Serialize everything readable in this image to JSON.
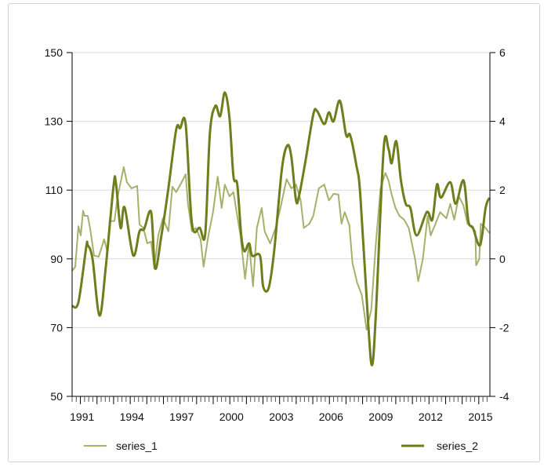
{
  "chart_data": {
    "type": "line",
    "title": "",
    "xlabel": "",
    "ylabel_left": "",
    "ylabel_right": "",
    "xlim": [
      1990.5,
      2015.67
    ],
    "ylim_left": [
      50,
      150
    ],
    "ylim_right": [
      -4,
      6
    ],
    "x_ticks": [
      "1991",
      "1994",
      "1997",
      "2000",
      "2003",
      "2006",
      "2009",
      "2012",
      "2015"
    ],
    "y_ticks_left": [
      "50",
      "70",
      "90",
      "110",
      "130",
      "150"
    ],
    "y_ticks_right": [
      "-4",
      "-2",
      "0",
      "2",
      "4",
      "6"
    ],
    "grid": true,
    "legend_position": "bottom",
    "colors": {
      "series_1": "#a7b06a",
      "series_2": "#6f7d1c",
      "grid": "#d9d9d9",
      "axis": "#000000"
    },
    "series": [
      {
        "name": "series_1",
        "axis": "left",
        "points": [
          [
            1990.5,
            86.5
          ],
          [
            1990.69,
            87.7
          ],
          [
            1990.88,
            99.5
          ],
          [
            1991.02,
            96.8
          ],
          [
            1991.16,
            104
          ],
          [
            1991.25,
            102.5
          ],
          [
            1991.44,
            102.5
          ],
          [
            1991.58,
            99
          ],
          [
            1991.82,
            91
          ],
          [
            1992.1,
            90.6
          ],
          [
            1992.43,
            95.7
          ],
          [
            1992.62,
            92
          ],
          [
            1992.76,
            101
          ],
          [
            1993.05,
            101
          ],
          [
            1993.24,
            108
          ],
          [
            1993.61,
            116.7
          ],
          [
            1993.8,
            112.3
          ],
          [
            1994.08,
            110.5
          ],
          [
            1994.42,
            111.2
          ],
          [
            1994.56,
            100
          ],
          [
            1994.79,
            99
          ],
          [
            1995.03,
            94.5
          ],
          [
            1995.26,
            95
          ],
          [
            1995.45,
            87.2
          ],
          [
            1995.69,
            96.8
          ],
          [
            1995.97,
            101.8
          ],
          [
            1996.3,
            98
          ],
          [
            1996.54,
            111
          ],
          [
            1996.77,
            109.4
          ],
          [
            1997.1,
            112.3
          ],
          [
            1997.34,
            114.6
          ],
          [
            1997.48,
            106
          ],
          [
            1997.72,
            98
          ],
          [
            1997.95,
            99
          ],
          [
            1998.24,
            95.7
          ],
          [
            1998.42,
            87.7
          ],
          [
            1998.71,
            96.8
          ],
          [
            1998.99,
            103.6
          ],
          [
            1999.27,
            113.9
          ],
          [
            1999.51,
            104.8
          ],
          [
            1999.7,
            111.6
          ],
          [
            1999.98,
            108.2
          ],
          [
            2000.22,
            109.4
          ],
          [
            2000.41,
            103.6
          ],
          [
            2000.64,
            96.8
          ],
          [
            2000.92,
            84.2
          ],
          [
            2001.16,
            94.5
          ],
          [
            2001.4,
            82
          ],
          [
            2001.63,
            99
          ],
          [
            2001.92,
            104.8
          ],
          [
            2002.1,
            98
          ],
          [
            2002.43,
            94.5
          ],
          [
            2002.76,
            99
          ],
          [
            2003.05,
            104.8
          ],
          [
            2003.42,
            113.2
          ],
          [
            2003.71,
            110.5
          ],
          [
            2003.99,
            111.6
          ],
          [
            2004.27,
            107
          ],
          [
            2004.46,
            99
          ],
          [
            2004.79,
            100.2
          ],
          [
            2005.03,
            102.5
          ],
          [
            2005.36,
            110.5
          ],
          [
            2005.69,
            111.6
          ],
          [
            2005.97,
            107
          ],
          [
            2006.25,
            108.9
          ],
          [
            2006.54,
            108.7
          ],
          [
            2006.73,
            100.2
          ],
          [
            2006.92,
            103.6
          ],
          [
            2007.2,
            99.8
          ],
          [
            2007.39,
            88.8
          ],
          [
            2007.67,
            83.1
          ],
          [
            2007.95,
            79.5
          ],
          [
            2008.24,
            69.4
          ],
          [
            2008.52,
            75.1
          ],
          [
            2008.8,
            94.5
          ],
          [
            2009.08,
            110.5
          ],
          [
            2009.37,
            115
          ],
          [
            2009.56,
            112.8
          ],
          [
            2009.75,
            108.7
          ],
          [
            2009.98,
            104.8
          ],
          [
            2010.22,
            102.5
          ],
          [
            2010.5,
            101.4
          ],
          [
            2010.78,
            99
          ],
          [
            2011.16,
            90
          ],
          [
            2011.35,
            83.5
          ],
          [
            2011.63,
            90
          ],
          [
            2011.92,
            102.5
          ],
          [
            2012.1,
            96.8
          ],
          [
            2012.39,
            100.2
          ],
          [
            2012.67,
            103.6
          ],
          [
            2013.05,
            101.8
          ],
          [
            2013.28,
            106
          ],
          [
            2013.52,
            101.4
          ],
          [
            2013.8,
            108.2
          ],
          [
            2014.08,
            105.5
          ],
          [
            2014.32,
            100.2
          ],
          [
            2014.6,
            99
          ],
          [
            2014.79,
            98
          ],
          [
            2014.84,
            88.1
          ],
          [
            2015.03,
            90
          ],
          [
            2015.12,
            100.2
          ],
          [
            2015.41,
            99
          ],
          [
            2015.64,
            97.5
          ]
        ]
      },
      {
        "name": "series_2",
        "axis": "right",
        "points": [
          [
            1990.5,
            -1.37
          ],
          [
            1990.88,
            -1.26
          ],
          [
            1991.35,
            0.34
          ],
          [
            1991.44,
            0.4
          ],
          [
            1991.73,
            0
          ],
          [
            1992.15,
            -1.65
          ],
          [
            1992.53,
            -0.23
          ],
          [
            1993.0,
            2.14
          ],
          [
            1993.14,
            2.2
          ],
          [
            1993.42,
            0.9
          ],
          [
            1993.66,
            1.5
          ],
          [
            1994.18,
            0.1
          ],
          [
            1994.56,
            0.8
          ],
          [
            1994.84,
            0.87
          ],
          [
            1995.26,
            1.36
          ],
          [
            1995.5,
            -0.28
          ],
          [
            1995.88,
            0.68
          ],
          [
            1996.3,
            2.05
          ],
          [
            1996.77,
            3.76
          ],
          [
            1997.01,
            3.8
          ],
          [
            1997.34,
            3.92
          ],
          [
            1997.72,
            1.02
          ],
          [
            1998.19,
            0.9
          ],
          [
            1998.52,
            0.73
          ],
          [
            1998.8,
            3.65
          ],
          [
            1999.13,
            4.45
          ],
          [
            1999.42,
            4.15
          ],
          [
            1999.7,
            4.84
          ],
          [
            1999.98,
            4.1
          ],
          [
            2000.22,
            2.4
          ],
          [
            2000.45,
            2.16
          ],
          [
            2000.69,
            0.68
          ],
          [
            2000.88,
            0.22
          ],
          [
            2001.16,
            0.45
          ],
          [
            2001.35,
            0.09
          ],
          [
            2001.82,
            0.09
          ],
          [
            2002.01,
            -0.8
          ],
          [
            2002.34,
            -0.85
          ],
          [
            2002.67,
            0.22
          ],
          [
            2003.14,
            2.62
          ],
          [
            2003.47,
            3.3
          ],
          [
            2003.71,
            2.96
          ],
          [
            2003.99,
            1.7
          ],
          [
            2004.18,
            1.85
          ],
          [
            2004.56,
            2.85
          ],
          [
            2005.03,
            4.2
          ],
          [
            2005.26,
            4.3
          ],
          [
            2005.69,
            3.92
          ],
          [
            2005.97,
            4.26
          ],
          [
            2006.25,
            4.0
          ],
          [
            2006.63,
            4.6
          ],
          [
            2007.01,
            3.6
          ],
          [
            2007.25,
            3.6
          ],
          [
            2007.62,
            2.73
          ],
          [
            2007.86,
            1.87
          ],
          [
            2008.33,
            -1.83
          ],
          [
            2008.57,
            -3.09
          ],
          [
            2008.8,
            -1.6
          ],
          [
            2009.27,
            3.2
          ],
          [
            2009.56,
            3.2
          ],
          [
            2009.75,
            2.78
          ],
          [
            2010.03,
            3.42
          ],
          [
            2010.31,
            2.28
          ],
          [
            2010.6,
            1.6
          ],
          [
            2010.88,
            1.48
          ],
          [
            2011.25,
            0.68
          ],
          [
            2011.87,
            1.36
          ],
          [
            2012.2,
            1.14
          ],
          [
            2012.48,
            2.16
          ],
          [
            2012.72,
            1.78
          ],
          [
            2013.28,
            2.23
          ],
          [
            2013.61,
            1.6
          ],
          [
            2014.08,
            2.28
          ],
          [
            2014.37,
            1.1
          ],
          [
            2014.65,
            0.9
          ],
          [
            2015.08,
            0.4
          ],
          [
            2015.41,
            1.48
          ],
          [
            2015.64,
            1.78
          ]
        ]
      }
    ]
  }
}
